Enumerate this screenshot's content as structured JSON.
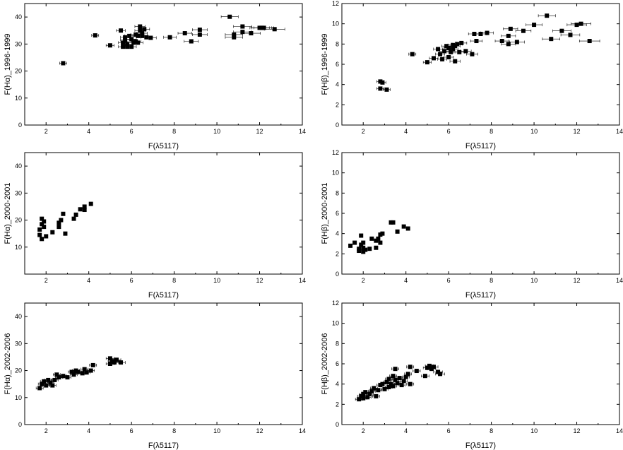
{
  "chart_data": [
    {
      "type": "scatter",
      "xlabel": "F(λ5117)",
      "ylabel": "F(Hα)_1996-1999",
      "xlim": [
        1,
        14
      ],
      "ylim": [
        0,
        45
      ],
      "xticks": [
        2,
        4,
        6,
        8,
        10,
        12,
        14
      ],
      "yticks": [
        0,
        10,
        20,
        30,
        40
      ],
      "error_bars": "horizontal",
      "points": [
        [
          2.8,
          22.9
        ],
        [
          4.3,
          33.2
        ],
        [
          5.0,
          29.5
        ],
        [
          5.5,
          35.0
        ],
        [
          5.6,
          30.5
        ],
        [
          5.6,
          29.0
        ],
        [
          5.7,
          31.5
        ],
        [
          5.7,
          32.5
        ],
        [
          5.8,
          30.0
        ],
        [
          5.8,
          29.0
        ],
        [
          5.9,
          33.0
        ],
        [
          6.0,
          31.8
        ],
        [
          6.0,
          29.0
        ],
        [
          6.1,
          30.5
        ],
        [
          6.2,
          33.5
        ],
        [
          6.2,
          31.0
        ],
        [
          6.3,
          33.0
        ],
        [
          6.3,
          30.5
        ],
        [
          6.4,
          36.5
        ],
        [
          6.4,
          35.0
        ],
        [
          6.5,
          34.0
        ],
        [
          6.5,
          33.0
        ],
        [
          6.6,
          35.5
        ],
        [
          6.7,
          32.5
        ],
        [
          6.9,
          32.3
        ],
        [
          7.8,
          32.5
        ],
        [
          8.5,
          34.0
        ],
        [
          8.8,
          31.0
        ],
        [
          9.2,
          35.3
        ],
        [
          9.2,
          33.5
        ],
        [
          10.6,
          40.1
        ],
        [
          10.8,
          33.5
        ],
        [
          10.8,
          32.5
        ],
        [
          11.2,
          36.5
        ],
        [
          11.2,
          34.5
        ],
        [
          11.6,
          34.0
        ],
        [
          12.0,
          36.0
        ],
        [
          12.1,
          36.0
        ],
        [
          12.2,
          36.0
        ],
        [
          12.7,
          35.5
        ]
      ]
    },
    {
      "type": "scatter",
      "xlabel": "F(λ5117)",
      "ylabel": "F(Hβ)_1996-1999",
      "xlim": [
        1,
        14
      ],
      "ylim": [
        0,
        12
      ],
      "xticks": [
        2,
        4,
        6,
        8,
        10,
        12,
        14
      ],
      "yticks": [
        0,
        2,
        4,
        6,
        8,
        10,
        12
      ],
      "error_bars": "horizontal",
      "points": [
        [
          2.8,
          4.3
        ],
        [
          2.9,
          4.2
        ],
        [
          2.8,
          3.6
        ],
        [
          3.1,
          3.5
        ],
        [
          4.3,
          7.0
        ],
        [
          5.0,
          6.2
        ],
        [
          5.3,
          6.6
        ],
        [
          5.5,
          7.5
        ],
        [
          5.6,
          7.0
        ],
        [
          5.7,
          6.5
        ],
        [
          5.8,
          7.3
        ],
        [
          5.9,
          7.8
        ],
        [
          6.0,
          7.6
        ],
        [
          6.0,
          6.7
        ],
        [
          6.1,
          7.2
        ],
        [
          6.2,
          7.9
        ],
        [
          6.2,
          7.5
        ],
        [
          6.3,
          6.3
        ],
        [
          6.3,
          7.8
        ],
        [
          6.4,
          8.0
        ],
        [
          6.5,
          7.2
        ],
        [
          6.6,
          8.1
        ],
        [
          6.8,
          7.3
        ],
        [
          7.1,
          7.0
        ],
        [
          7.2,
          9.0
        ],
        [
          7.3,
          8.3
        ],
        [
          7.5,
          9.0
        ],
        [
          7.8,
          9.1
        ],
        [
          8.5,
          8.3
        ],
        [
          8.8,
          8.8
        ],
        [
          8.8,
          8.0
        ],
        [
          8.9,
          9.5
        ],
        [
          9.2,
          8.2
        ],
        [
          9.5,
          9.3
        ],
        [
          10.0,
          9.9
        ],
        [
          10.6,
          10.8
        ],
        [
          10.8,
          8.5
        ],
        [
          11.3,
          9.3
        ],
        [
          11.7,
          8.9
        ],
        [
          12.0,
          9.9
        ],
        [
          12.2,
          10.0
        ],
        [
          12.6,
          8.3
        ]
      ]
    },
    {
      "type": "scatter",
      "xlabel": "F(λ5117)",
      "ylabel": "F(Hα)_2000-2001",
      "xlim": [
        1,
        14
      ],
      "ylim": [
        0,
        45
      ],
      "xticks": [
        2,
        4,
        6,
        8,
        10,
        12,
        14
      ],
      "yticks": [
        10,
        20,
        30,
        40
      ],
      "points": [
        [
          1.7,
          14.5
        ],
        [
          1.7,
          16.5
        ],
        [
          1.8,
          20.5
        ],
        [
          1.8,
          18.5
        ],
        [
          1.8,
          13.0
        ],
        [
          1.9,
          19.5
        ],
        [
          1.9,
          17.5
        ],
        [
          2.0,
          14.0
        ],
        [
          2.3,
          15.5
        ],
        [
          2.6,
          17.5
        ],
        [
          2.6,
          19.0
        ],
        [
          2.7,
          20.0
        ],
        [
          2.8,
          22.3
        ],
        [
          2.9,
          15.0
        ],
        [
          3.3,
          20.5
        ],
        [
          3.4,
          22.0
        ],
        [
          3.6,
          24.0
        ],
        [
          3.8,
          25.0
        ],
        [
          3.8,
          23.8
        ],
        [
          4.1,
          26.0
        ]
      ]
    },
    {
      "type": "scatter",
      "xlabel": "F(λ5117)",
      "ylabel": "F(Hβ)_2000-2001",
      "xlim": [
        1,
        14
      ],
      "ylim": [
        0,
        12
      ],
      "xticks": [
        2,
        4,
        6,
        8,
        10,
        12,
        14
      ],
      "yticks": [
        0,
        2,
        4,
        6,
        8,
        10,
        12
      ],
      "points": [
        [
          1.4,
          2.8
        ],
        [
          1.6,
          3.1
        ],
        [
          1.8,
          2.5
        ],
        [
          1.8,
          2.3
        ],
        [
          1.9,
          2.9
        ],
        [
          1.9,
          3.8
        ],
        [
          2.0,
          2.2
        ],
        [
          2.0,
          2.6
        ],
        [
          2.0,
          3.1
        ],
        [
          2.1,
          2.4
        ],
        [
          2.3,
          2.5
        ],
        [
          2.4,
          3.5
        ],
        [
          2.6,
          3.3
        ],
        [
          2.6,
          2.6
        ],
        [
          2.7,
          3.5
        ],
        [
          2.8,
          3.9
        ],
        [
          2.8,
          3.1
        ],
        [
          2.9,
          4.0
        ],
        [
          3.3,
          5.1
        ],
        [
          3.4,
          5.1
        ],
        [
          3.6,
          4.2
        ],
        [
          3.9,
          4.7
        ],
        [
          4.1,
          4.5
        ]
      ]
    },
    {
      "type": "scatter",
      "xlabel": "F(λ5117)",
      "ylabel": "F(Hα)_2002-2006",
      "xlim": [
        1,
        14
      ],
      "ylim": [
        0,
        45
      ],
      "xticks": [
        2,
        4,
        6,
        8,
        10,
        12,
        14
      ],
      "yticks": [
        0,
        10,
        20,
        30,
        40
      ],
      "error_bars": "horizontal",
      "points": [
        [
          1.7,
          13.5
        ],
        [
          1.8,
          15.0
        ],
        [
          1.9,
          16.0
        ],
        [
          2.0,
          14.5
        ],
        [
          2.1,
          16.5
        ],
        [
          2.2,
          15.5
        ],
        [
          2.3,
          14.5
        ],
        [
          2.4,
          16.5
        ],
        [
          2.5,
          18.5
        ],
        [
          2.6,
          17.5
        ],
        [
          2.8,
          18.0
        ],
        [
          3.0,
          17.5
        ],
        [
          3.2,
          19.5
        ],
        [
          3.3,
          18.5
        ],
        [
          3.4,
          20.0
        ],
        [
          3.5,
          19.5
        ],
        [
          3.7,
          19.0
        ],
        [
          3.8,
          20.5
        ],
        [
          3.9,
          19.3
        ],
        [
          4.1,
          20.0
        ],
        [
          4.2,
          22.0
        ],
        [
          5.0,
          24.5
        ],
        [
          5.0,
          22.5
        ],
        [
          5.1,
          23.5
        ],
        [
          5.2,
          23.0
        ],
        [
          5.3,
          24.0
        ],
        [
          5.5,
          23.0
        ]
      ]
    },
    {
      "type": "scatter",
      "xlabel": "F(λ5117)",
      "ylabel": "F(Hβ)_2002-2006",
      "xlim": [
        1,
        14
      ],
      "ylim": [
        0,
        12
      ],
      "xticks": [
        2,
        4,
        6,
        8,
        10,
        12,
        14
      ],
      "yticks": [
        0,
        2,
        4,
        6,
        8,
        10,
        12
      ],
      "error_bars": "horizontal",
      "points": [
        [
          1.8,
          2.5
        ],
        [
          1.9,
          2.8
        ],
        [
          2.0,
          3.0
        ],
        [
          2.0,
          2.6
        ],
        [
          2.1,
          3.2
        ],
        [
          2.2,
          2.7
        ],
        [
          2.3,
          3.0
        ],
        [
          2.4,
          3.3
        ],
        [
          2.5,
          3.6
        ],
        [
          2.6,
          2.8
        ],
        [
          2.7,
          3.4
        ],
        [
          2.8,
          3.9
        ],
        [
          2.9,
          4.0
        ],
        [
          3.0,
          3.5
        ],
        [
          3.1,
          4.2
        ],
        [
          3.2,
          3.7
        ],
        [
          3.2,
          4.5
        ],
        [
          3.3,
          4.0
        ],
        [
          3.4,
          4.8
        ],
        [
          3.4,
          3.8
        ],
        [
          3.5,
          4.4
        ],
        [
          3.5,
          5.5
        ],
        [
          3.6,
          4.1
        ],
        [
          3.7,
          4.6
        ],
        [
          3.8,
          3.9
        ],
        [
          3.9,
          4.3
        ],
        [
          4.0,
          4.7
        ],
        [
          4.1,
          5.0
        ],
        [
          4.2,
          4.0
        ],
        [
          4.2,
          5.7
        ],
        [
          4.5,
          5.3
        ],
        [
          4.9,
          4.8
        ],
        [
          5.0,
          5.6
        ],
        [
          5.1,
          5.8
        ],
        [
          5.2,
          5.5
        ],
        [
          5.3,
          5.7
        ],
        [
          5.5,
          5.2
        ],
        [
          5.6,
          5.0
        ]
      ]
    }
  ]
}
